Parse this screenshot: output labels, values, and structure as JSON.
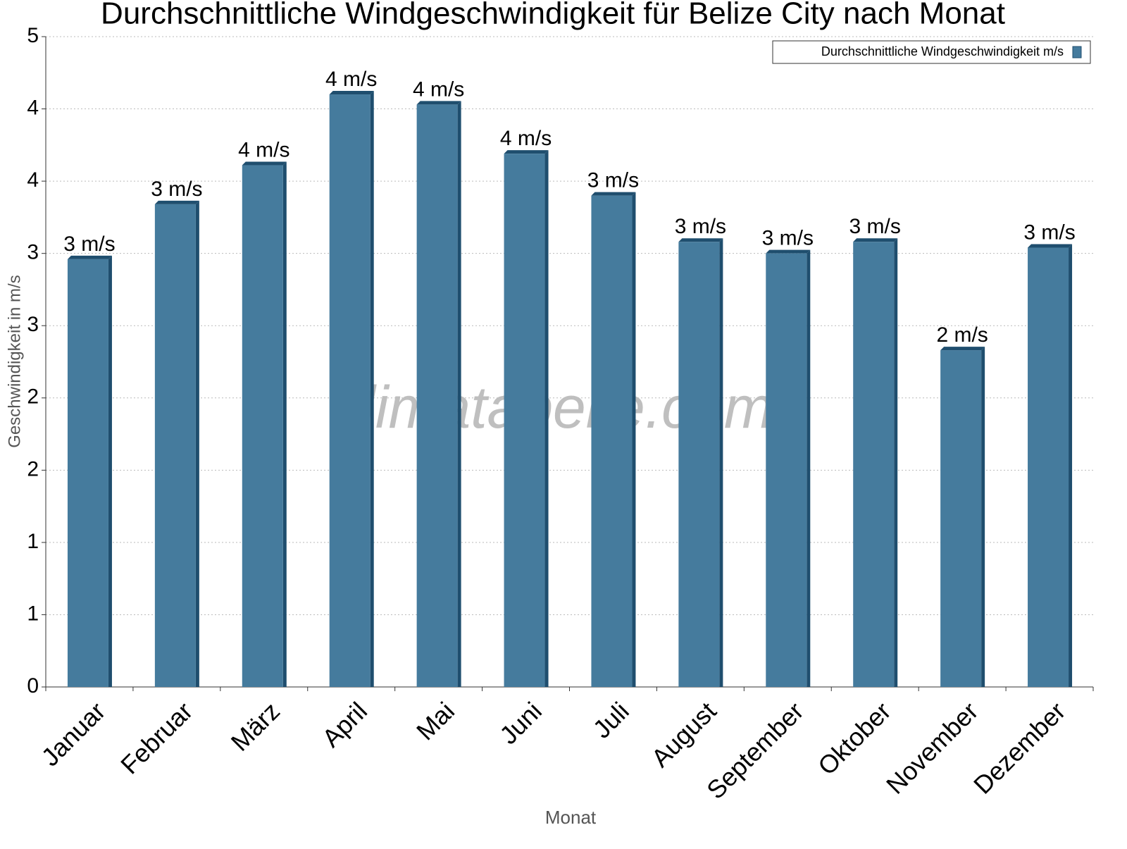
{
  "chart_data": {
    "type": "bar",
    "title": "Durchschnittliche Windgeschwindigkeit für Belize City nach Monat",
    "x_label": "Monat",
    "y_label": "Geschwindigkeit in m/s",
    "watermark": "klimatabelle.com",
    "categories": [
      "Januar",
      "Februar",
      "März",
      "April",
      "Mai",
      "Juni",
      "Juli",
      "August",
      "September",
      "Oktober",
      "November",
      "Dezember"
    ],
    "series": [
      {
        "name": "Durchschnittliche Windgeschwindigkeit m/s",
        "color": "#457b9d",
        "values": [
          2.96,
          3.34,
          3.61,
          4.1,
          4.03,
          3.69,
          3.4,
          3.08,
          3.0,
          3.08,
          2.33,
          3.04
        ],
        "value_labels": [
          "3 m/s",
          "3 m/s",
          "4 m/s",
          "4 m/s",
          "4 m/s",
          "4 m/s",
          "3 m/s",
          "3 m/s",
          "3 m/s",
          "3 m/s",
          "2 m/s",
          "3 m/s"
        ]
      }
    ],
    "ylim": [
      0,
      4.5
    ],
    "yticks": [
      0,
      {
        "value": 0.5,
        "label": "1"
      },
      {
        "value": 1,
        "label": "1"
      },
      {
        "value": 1.5,
        "label": "2"
      },
      {
        "value": 2,
        "label": "2"
      },
      {
        "value": 2.5,
        "label": "3"
      },
      {
        "value": 3,
        "label": "3"
      },
      {
        "value": 3.5,
        "label": "4"
      },
      {
        "value": 4,
        "label": "4"
      },
      {
        "value": 4.5,
        "label": "5"
      }
    ],
    "grid": true,
    "legend": "top-right"
  }
}
